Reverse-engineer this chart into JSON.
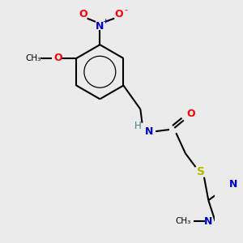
{
  "bg_color": "#ebebeb",
  "atom_colors": {
    "C": "#000000",
    "N": "#0000cc",
    "O": "#ff0000",
    "S": "#b8b800",
    "H": "#4a8080"
  },
  "bond_color": "#000000",
  "bond_width": 1.5
}
